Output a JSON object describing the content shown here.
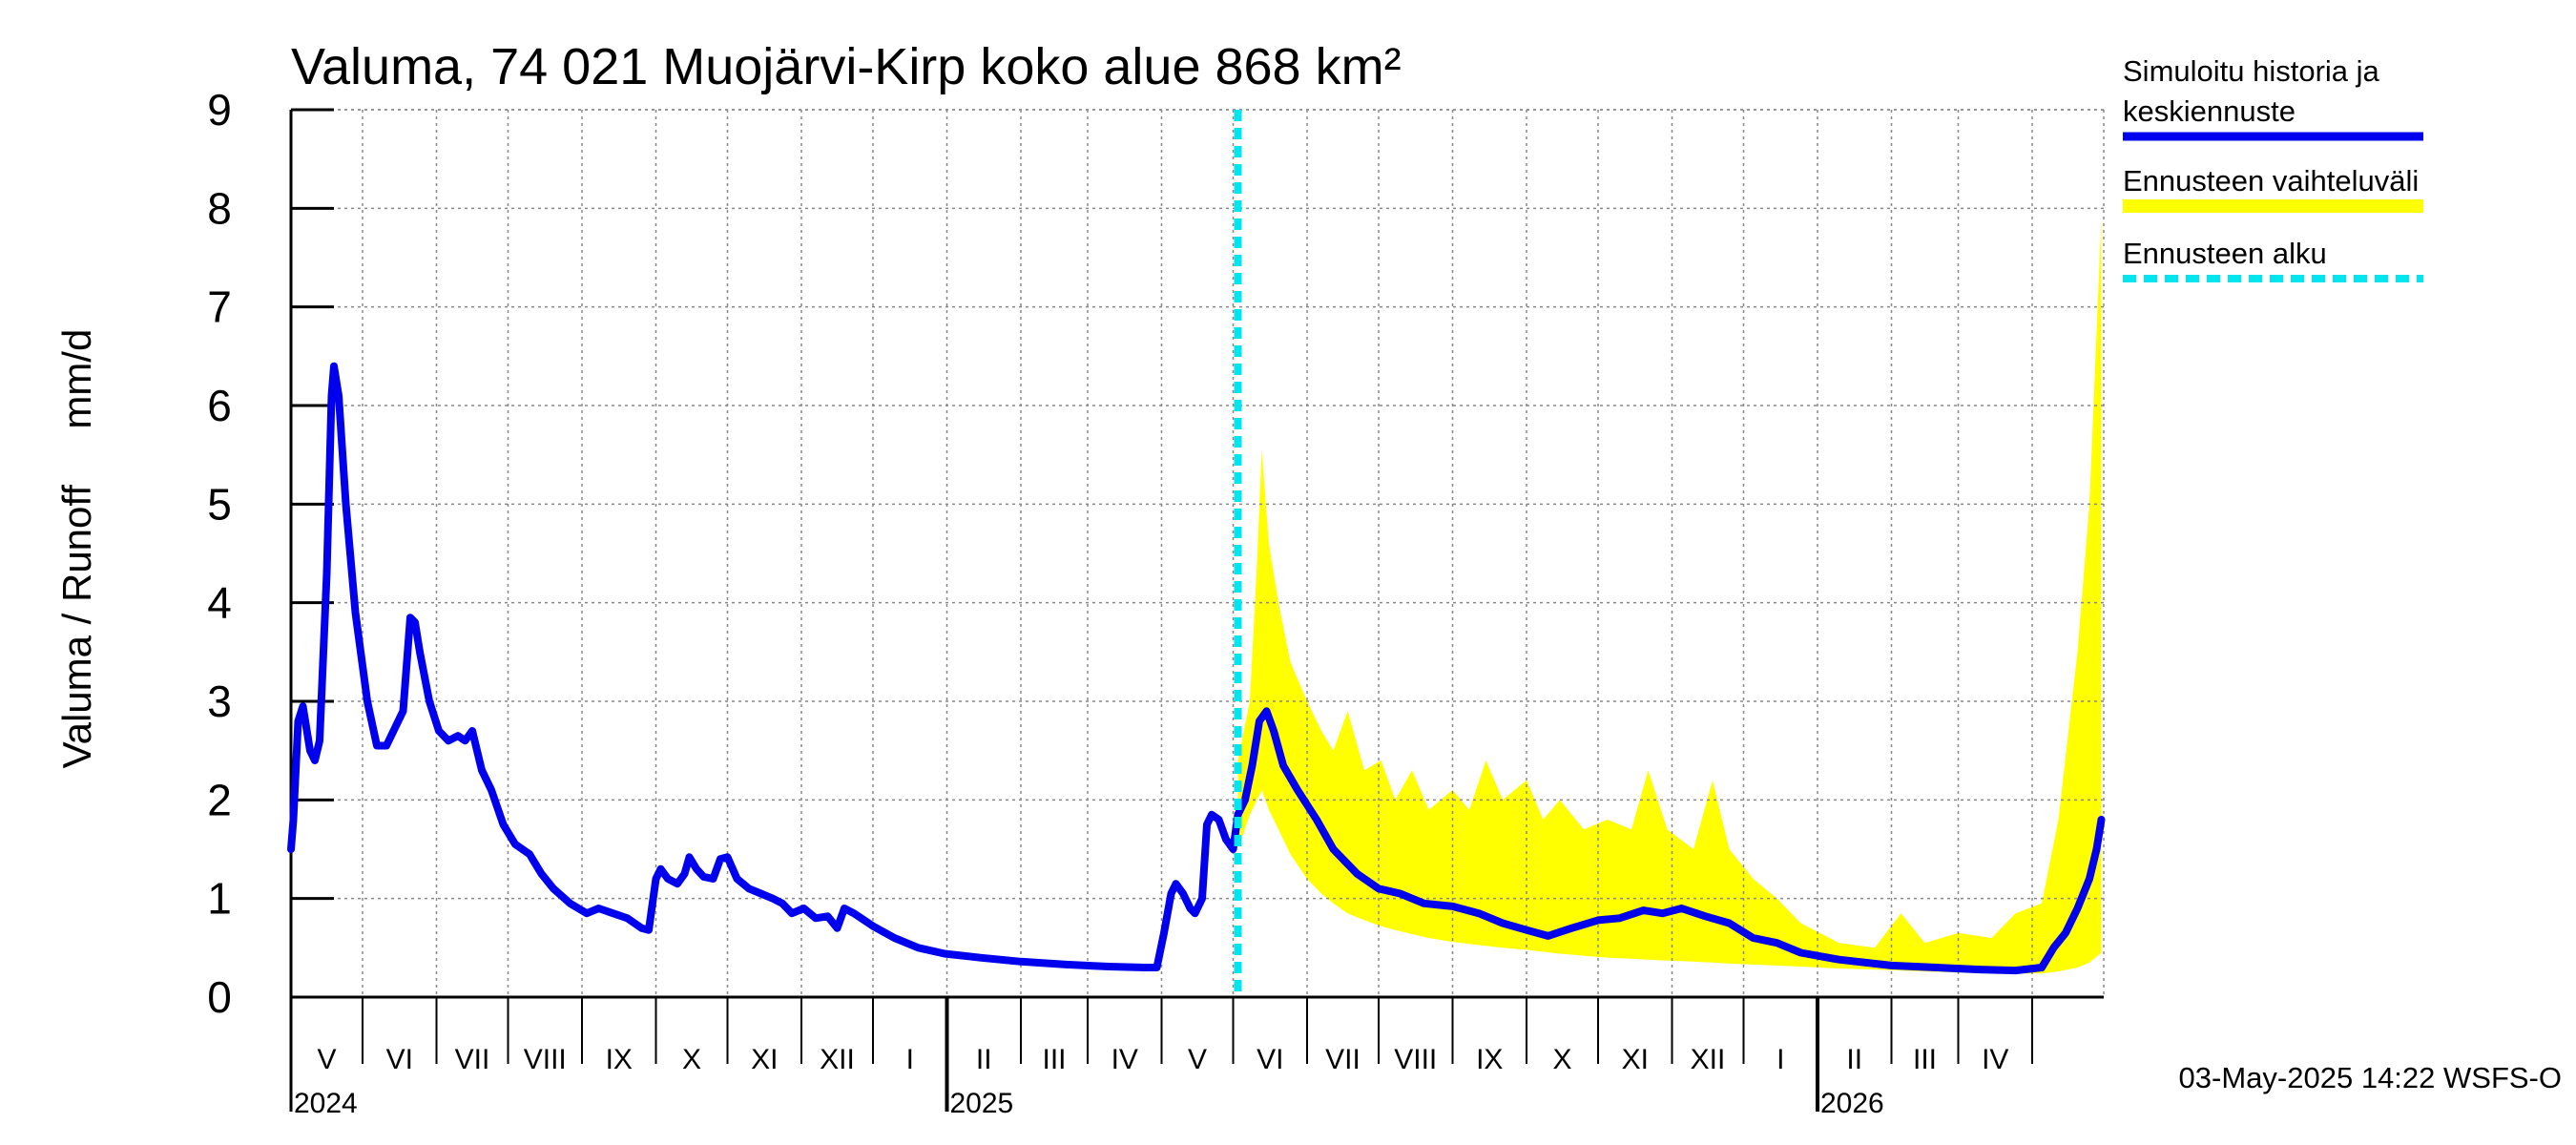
{
  "chart_data": {
    "type": "line",
    "title": "Valuma, 74 021 Muojärvi-Kirp koko alue 868 km²",
    "ylabel": "Valuma / Runoff     mm/d",
    "ylim": [
      0,
      9
    ],
    "yticks": [
      0,
      1,
      2,
      3,
      4,
      5,
      6,
      7,
      8,
      9
    ],
    "xlim": [
      "2024-04-01",
      "2026-04-30"
    ],
    "grid": true,
    "legend_placement": "right",
    "month_labels": [
      "V",
      "VI",
      "VII",
      "VIII",
      "IX",
      "X",
      "XI",
      "XII",
      "I",
      "II",
      "III",
      "IV",
      "V",
      "VI",
      "VII",
      "VIII",
      "IX",
      "X",
      "XI",
      "XII",
      "I",
      "II",
      "III",
      "IV"
    ],
    "year_labels": [
      {
        "label": "2024",
        "date": "2024-04-01"
      },
      {
        "label": "2025",
        "date": "2025-01-01"
      },
      {
        "label": "2026",
        "date": "2026-01-01"
      }
    ],
    "forecast_start": "2025-05-03",
    "colors": {
      "history": "#0000ee",
      "band": "#ffff00",
      "forecast_line": "#00e5ee"
    },
    "legend": [
      {
        "label": "Simuloitu historia ja",
        "label2": "keskiennuste",
        "kind": "line",
        "color": "#0000ee"
      },
      {
        "label": "Ennusteen vaihteluväli",
        "kind": "band",
        "color": "#ffff00"
      },
      {
        "label": "Ennusteen alku",
        "kind": "dashed",
        "color": "#00e5ee"
      }
    ],
    "series": [
      {
        "name": "Simuloitu historia ja keskiennuste",
        "points": [
          [
            "2024-04-01",
            1.5
          ],
          [
            "2024-04-02",
            1.8
          ],
          [
            "2024-04-04",
            2.8
          ],
          [
            "2024-04-06",
            2.95
          ],
          [
            "2024-04-09",
            2.5
          ],
          [
            "2024-04-11",
            2.4
          ],
          [
            "2024-04-13",
            2.6
          ],
          [
            "2024-04-16",
            4.3
          ],
          [
            "2024-04-18",
            6.1
          ],
          [
            "2024-04-19",
            6.4
          ],
          [
            "2024-04-21",
            6.1
          ],
          [
            "2024-04-24",
            5.0
          ],
          [
            "2024-04-28",
            3.9
          ],
          [
            "2024-05-03",
            3.0
          ],
          [
            "2024-05-07",
            2.55
          ],
          [
            "2024-05-11",
            2.55
          ],
          [
            "2024-05-15",
            2.75
          ],
          [
            "2024-05-18",
            2.9
          ],
          [
            "2024-05-21",
            3.85
          ],
          [
            "2024-05-23",
            3.8
          ],
          [
            "2024-05-25",
            3.5
          ],
          [
            "2024-05-29",
            3.0
          ],
          [
            "2024-06-02",
            2.7
          ],
          [
            "2024-06-06",
            2.6
          ],
          [
            "2024-06-10",
            2.65
          ],
          [
            "2024-06-13",
            2.6
          ],
          [
            "2024-06-16",
            2.7
          ],
          [
            "2024-06-20",
            2.3
          ],
          [
            "2024-06-24",
            2.1
          ],
          [
            "2024-06-29",
            1.75
          ],
          [
            "2024-07-04",
            1.55
          ],
          [
            "2024-07-10",
            1.45
          ],
          [
            "2024-07-15",
            1.25
          ],
          [
            "2024-07-20",
            1.1
          ],
          [
            "2024-07-27",
            0.95
          ],
          [
            "2024-08-03",
            0.85
          ],
          [
            "2024-08-08",
            0.9
          ],
          [
            "2024-08-14",
            0.85
          ],
          [
            "2024-08-20",
            0.8
          ],
          [
            "2024-08-26",
            0.7
          ],
          [
            "2024-08-29",
            0.68
          ],
          [
            "2024-09-01",
            1.2
          ],
          [
            "2024-09-03",
            1.3
          ],
          [
            "2024-09-06",
            1.2
          ],
          [
            "2024-09-10",
            1.15
          ],
          [
            "2024-09-13",
            1.25
          ],
          [
            "2024-09-15",
            1.42
          ],
          [
            "2024-09-18",
            1.3
          ],
          [
            "2024-09-21",
            1.22
          ],
          [
            "2024-09-25",
            1.2
          ],
          [
            "2024-09-28",
            1.4
          ],
          [
            "2024-10-01",
            1.42
          ],
          [
            "2024-10-05",
            1.2
          ],
          [
            "2024-10-10",
            1.1
          ],
          [
            "2024-10-15",
            1.05
          ],
          [
            "2024-10-20",
            1.0
          ],
          [
            "2024-10-24",
            0.95
          ],
          [
            "2024-10-28",
            0.85
          ],
          [
            "2024-11-02",
            0.9
          ],
          [
            "2024-11-07",
            0.8
          ],
          [
            "2024-11-12",
            0.82
          ],
          [
            "2024-11-16",
            0.7
          ],
          [
            "2024-11-19",
            0.9
          ],
          [
            "2024-11-23",
            0.85
          ],
          [
            "2024-12-01",
            0.72
          ],
          [
            "2024-12-10",
            0.6
          ],
          [
            "2024-12-20",
            0.5
          ],
          [
            "2024-12-31",
            0.44
          ],
          [
            "2025-01-15",
            0.4
          ],
          [
            "2025-02-01",
            0.36
          ],
          [
            "2025-02-20",
            0.33
          ],
          [
            "2025-03-10",
            0.31
          ],
          [
            "2025-03-25",
            0.3
          ],
          [
            "2025-03-30",
            0.3
          ],
          [
            "2025-04-02",
            0.65
          ],
          [
            "2025-04-05",
            1.05
          ],
          [
            "2025-04-07",
            1.15
          ],
          [
            "2025-04-10",
            1.05
          ],
          [
            "2025-04-13",
            0.9
          ],
          [
            "2025-04-15",
            0.85
          ],
          [
            "2025-04-18",
            1.0
          ],
          [
            "2025-04-20",
            1.75
          ],
          [
            "2025-04-22",
            1.85
          ],
          [
            "2025-04-25",
            1.8
          ],
          [
            "2025-04-28",
            1.6
          ],
          [
            "2025-05-01",
            1.5
          ],
          [
            "2025-05-03",
            1.85
          ],
          [
            "2025-05-06",
            2.0
          ],
          [
            "2025-05-09",
            2.35
          ],
          [
            "2025-05-12",
            2.8
          ],
          [
            "2025-05-15",
            2.9
          ],
          [
            "2025-05-18",
            2.7
          ],
          [
            "2025-05-22",
            2.35
          ],
          [
            "2025-05-28",
            2.1
          ],
          [
            "2025-06-05",
            1.8
          ],
          [
            "2025-06-12",
            1.5
          ],
          [
            "2025-06-22",
            1.25
          ],
          [
            "2025-07-01",
            1.1
          ],
          [
            "2025-07-10",
            1.05
          ],
          [
            "2025-07-20",
            0.95
          ],
          [
            "2025-08-01",
            0.92
          ],
          [
            "2025-08-12",
            0.85
          ],
          [
            "2025-08-22",
            0.75
          ],
          [
            "2025-09-01",
            0.68
          ],
          [
            "2025-09-10",
            0.62
          ],
          [
            "2025-09-20",
            0.7
          ],
          [
            "2025-10-01",
            0.78
          ],
          [
            "2025-10-10",
            0.8
          ],
          [
            "2025-10-20",
            0.88
          ],
          [
            "2025-10-28",
            0.85
          ],
          [
            "2025-11-05",
            0.9
          ],
          [
            "2025-11-15",
            0.82
          ],
          [
            "2025-11-25",
            0.75
          ],
          [
            "2025-12-05",
            0.6
          ],
          [
            "2025-12-15",
            0.55
          ],
          [
            "2025-12-25",
            0.45
          ],
          [
            "2026-01-10",
            0.38
          ],
          [
            "2026-02-01",
            0.32
          ],
          [
            "2026-02-20",
            0.3
          ],
          [
            "2026-03-10",
            0.28
          ],
          [
            "2026-03-25",
            0.27
          ],
          [
            "2026-04-05",
            0.3
          ],
          [
            "2026-04-10",
            0.5
          ],
          [
            "2026-04-15",
            0.65
          ],
          [
            "2026-04-20",
            0.9
          ],
          [
            "2026-04-25",
            1.2
          ],
          [
            "2026-04-28",
            1.5
          ],
          [
            "2026-04-30",
            1.8
          ]
        ]
      },
      {
        "name": "Ennusteen vaihteluväli",
        "band": [
          [
            "2025-05-03",
            1.5,
            2.4
          ],
          [
            "2025-05-08",
            1.85,
            3.0
          ],
          [
            "2025-05-11",
            2.0,
            4.4
          ],
          [
            "2025-05-13",
            2.1,
            5.55
          ],
          [
            "2025-05-16",
            1.9,
            4.6
          ],
          [
            "2025-05-20",
            1.7,
            4.0
          ],
          [
            "2025-05-25",
            1.45,
            3.4
          ],
          [
            "2025-06-01",
            1.2,
            3.0
          ],
          [
            "2025-06-07",
            1.05,
            2.7
          ],
          [
            "2025-06-12",
            0.95,
            2.5
          ],
          [
            "2025-06-18",
            0.85,
            2.9
          ],
          [
            "2025-06-25",
            0.78,
            2.3
          ],
          [
            "2025-07-02",
            0.72,
            2.4
          ],
          [
            "2025-07-08",
            0.68,
            2.0
          ],
          [
            "2025-07-15",
            0.64,
            2.3
          ],
          [
            "2025-07-22",
            0.6,
            1.9
          ],
          [
            "2025-08-01",
            0.56,
            2.1
          ],
          [
            "2025-08-08",
            0.54,
            1.9
          ],
          [
            "2025-08-15",
            0.52,
            2.4
          ],
          [
            "2025-08-22",
            0.5,
            2.0
          ],
          [
            "2025-09-01",
            0.48,
            2.2
          ],
          [
            "2025-09-08",
            0.46,
            1.8
          ],
          [
            "2025-09-15",
            0.44,
            2.0
          ],
          [
            "2025-09-25",
            0.42,
            1.7
          ],
          [
            "2025-10-05",
            0.4,
            1.8
          ],
          [
            "2025-10-15",
            0.39,
            1.7
          ],
          [
            "2025-10-22",
            0.38,
            2.3
          ],
          [
            "2025-10-30",
            0.37,
            1.7
          ],
          [
            "2025-11-10",
            0.36,
            1.5
          ],
          [
            "2025-11-18",
            0.35,
            2.2
          ],
          [
            "2025-11-25",
            0.34,
            1.5
          ],
          [
            "2025-12-05",
            0.33,
            1.2
          ],
          [
            "2025-12-15",
            0.32,
            1.0
          ],
          [
            "2025-12-25",
            0.31,
            0.75
          ],
          [
            "2026-01-10",
            0.29,
            0.55
          ],
          [
            "2026-01-25",
            0.28,
            0.5
          ],
          [
            "2026-02-05",
            0.27,
            0.85
          ],
          [
            "2026-02-15",
            0.26,
            0.55
          ],
          [
            "2026-03-01",
            0.25,
            0.65
          ],
          [
            "2026-03-15",
            0.24,
            0.6
          ],
          [
            "2026-03-25",
            0.24,
            0.85
          ],
          [
            "2026-04-05",
            0.24,
            0.95
          ],
          [
            "2026-04-12",
            0.26,
            1.8
          ],
          [
            "2026-04-20",
            0.3,
            3.5
          ],
          [
            "2026-04-25",
            0.35,
            5.0
          ],
          [
            "2026-04-30",
            0.45,
            7.9
          ]
        ]
      }
    ]
  },
  "footer": "03-May-2025 14:22 WSFS-O"
}
